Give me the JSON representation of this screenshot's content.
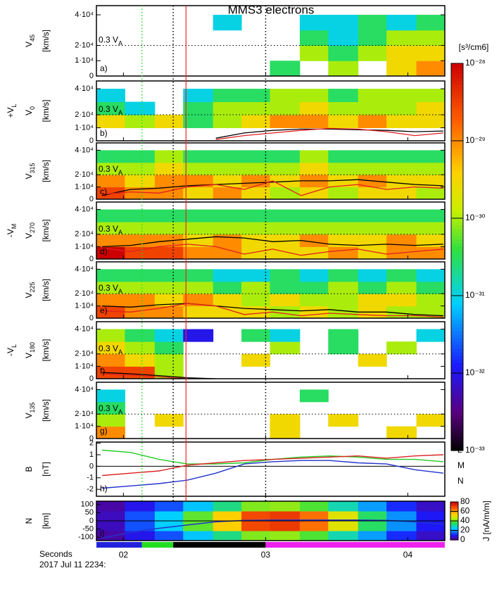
{
  "chart_data": {
    "type": "spectrogram",
    "title": "MMS3   electrons",
    "time_axis": {
      "xlim": [
        1.81,
        4.26
      ],
      "xticks": [
        {
          "value": 2,
          "label": "02"
        },
        {
          "value": 3,
          "label": "03"
        },
        {
          "value": 4,
          "label": "04"
        }
      ],
      "label_1": "Seconds",
      "label_2": "2017 Jul 11 2234:"
    },
    "markers": [
      {
        "x": 2.13,
        "color": "#22dd22",
        "style": "dotted"
      },
      {
        "x": 2.35,
        "color": "#000000",
        "style": "dotted"
      },
      {
        "x": 2.44,
        "color": "#ee2222",
        "style": "solid"
      },
      {
        "x": 3.0,
        "color": "#000000",
        "style": "dotted"
      }
    ],
    "interval_bar": [
      {
        "start": 1.81,
        "end": 2.13,
        "color": "#2222dd"
      },
      {
        "start": 2.13,
        "end": 2.35,
        "color": "#22dd22"
      },
      {
        "start": 2.35,
        "end": 3.0,
        "color": "#000000"
      },
      {
        "start": 3.0,
        "end": 4.26,
        "color": "#ee22ee"
      }
    ],
    "psd_colorbar": {
      "label": "[s³/cm6]",
      "log": true,
      "lim": [
        1e-33,
        1e-28
      ],
      "ticks": [
        {
          "value": 1e-28,
          "label": "10⁻²⁸"
        },
        {
          "value": 1e-29,
          "label": "10⁻²⁹"
        },
        {
          "value": 1e-30,
          "label": "10⁻³⁰"
        },
        {
          "value": 1e-31,
          "label": "10⁻³¹"
        },
        {
          "value": 1e-32,
          "label": "10⁻³²"
        },
        {
          "value": 1e-33,
          "label": "10⁻³³"
        }
      ]
    },
    "speed_axis": {
      "ylim": [
        0,
        46000
      ],
      "yticks": [
        0,
        {
          "value": 10000,
          "label": "1·10⁴"
        },
        {
          "value": 20000,
          "label": "2·10⁴"
        },
        {
          "value": 40000,
          "label": "4·10⁴"
        }
      ],
      "speed_bins": [
        0,
        10000,
        20000,
        30000,
        40000
      ],
      "va_level": 20000,
      "va_label": {
        "text": "0.3 V",
        "sub": "A"
      },
      "unit": "[km/s]"
    },
    "time_bins": [
      1.81,
      2.01,
      2.22,
      2.42,
      2.63,
      2.83,
      3.03,
      3.24,
      3.44,
      3.65,
      3.85,
      4.06,
      4.26
    ],
    "line_time": [
      1.85,
      2.05,
      2.25,
      2.45,
      2.65,
      2.85,
      3.05,
      3.25,
      3.45,
      3.65,
      3.85,
      4.05,
      4.25
    ],
    "panels": [
      {
        "type": "heatmap",
        "ylabel": {
          "text": "V",
          "sub": "45"
        },
        "letter": "a)",
        "psd": [
          [
            null,
            null,
            null,
            null,
            null,
            null,
            3e-31,
            null,
            1e-30,
            null,
            3e-30,
            1e-29
          ],
          [
            null,
            null,
            null,
            null,
            null,
            null,
            null,
            1e-30,
            3e-31,
            1e-30,
            3e-30,
            3e-30
          ],
          [
            null,
            null,
            null,
            null,
            null,
            null,
            null,
            3e-31,
            1e-31,
            3e-31,
            1e-30,
            1e-30
          ],
          [
            null,
            null,
            null,
            null,
            1e-31,
            null,
            null,
            1e-31,
            1e-31,
            3e-31,
            1e-31,
            3e-31
          ]
        ],
        "lines": []
      },
      {
        "type": "heatmap",
        "ylabel": {
          "text": "V",
          "sub": "0"
        },
        "letter": "b)",
        "side_label": {
          "text": "+V",
          "sub": "L"
        },
        "psd": [
          [
            null,
            null,
            null,
            null,
            null,
            null,
            null,
            null,
            null,
            null,
            null,
            null
          ],
          [
            3e-30,
            1e-30,
            3e-30,
            3e-31,
            1e-30,
            3e-30,
            1e-29,
            1e-29,
            3e-30,
            1e-29,
            3e-30,
            3e-30
          ],
          [
            3e-31,
            1e-31,
            null,
            3e-31,
            1e-30,
            1e-30,
            1e-30,
            3e-30,
            1e-30,
            1e-30,
            1e-30,
            3e-30
          ],
          [
            1e-31,
            null,
            null,
            1e-31,
            3e-31,
            3e-31,
            1e-30,
            1e-30,
            3e-31,
            1e-30,
            1e-30,
            1e-30
          ]
        ],
        "lines": [
          {
            "color": "#000000",
            "values": [
              null,
              null,
              null,
              null,
              2000,
              6000,
              8000,
              9000,
              9000,
              8500,
              8000,
              7000,
              7500
            ]
          },
          {
            "color": "#e02020",
            "values": [
              null,
              null,
              null,
              null,
              1000,
              4000,
              6000,
              8000,
              9500,
              9000,
              7000,
              4000,
              6000
            ]
          }
        ]
      },
      {
        "type": "heatmap",
        "ylabel": {
          "text": "V",
          "sub": "315"
        },
        "letter": "c)",
        "psd": [
          [
            3e-29,
            1e-29,
            1e-29,
            3e-30,
            1e-29,
            3e-30,
            1e-30,
            3e-30,
            1e-30,
            3e-30,
            3e-30,
            1e-30
          ],
          [
            1e-29,
            3e-30,
            1e-29,
            1e-29,
            3e-30,
            1e-29,
            3e-30,
            1e-29,
            3e-30,
            1e-29,
            3e-30,
            3e-30
          ],
          [
            1e-30,
            1e-30,
            3e-30,
            1e-30,
            1e-30,
            1e-30,
            1e-30,
            3e-30,
            1e-30,
            1e-30,
            1e-30,
            1e-30
          ],
          [
            3e-31,
            3e-31,
            1e-30,
            3e-31,
            3e-31,
            3e-31,
            3e-31,
            1e-30,
            3e-31,
            3e-31,
            3e-31,
            3e-31
          ]
        ],
        "lines": [
          {
            "color": "#000000",
            "values": [
              3000,
              8000,
              9000,
              11000,
              12000,
              13000,
              14000,
              15000,
              15000,
              16000,
              14000,
              12000,
              11000
            ]
          },
          {
            "color": "#e02020",
            "values": [
              4000,
              6000,
              5000,
              10000,
              12000,
              8000,
              15000,
              3000,
              10000,
              12000,
              8000,
              10000,
              9000
            ]
          }
        ]
      },
      {
        "type": "heatmap",
        "ylabel": {
          "text": "V",
          "sub": "270"
        },
        "letter": "d)",
        "side_label": {
          "text": "-V",
          "sub": "M"
        },
        "psd": [
          [
            1e-28,
            3e-29,
            3e-29,
            1e-29,
            1e-29,
            3e-30,
            3e-30,
            3e-30,
            1e-29,
            3e-30,
            1e-29,
            1e-29
          ],
          [
            1e-29,
            1e-29,
            1e-29,
            3e-30,
            1e-29,
            3e-30,
            3e-30,
            1e-29,
            3e-30,
            3e-30,
            1e-29,
            3e-30
          ],
          [
            1e-30,
            1e-30,
            1e-30,
            1e-30,
            1e-30,
            1e-30,
            1e-30,
            1e-30,
            1e-30,
            1e-30,
            1e-30,
            1e-30
          ],
          [
            3e-31,
            3e-31,
            3e-31,
            3e-31,
            3e-31,
            3e-31,
            3e-31,
            3e-31,
            3e-31,
            3e-31,
            3e-31,
            3e-31
          ]
        ],
        "lines": [
          {
            "color": "#000000",
            "values": [
              10000,
              11000,
              14000,
              16000,
              18000,
              17000,
              14000,
              15000,
              12000,
              11000,
              12000,
              11000,
              12000
            ]
          },
          {
            "color": "#e02020",
            "values": [
              9000,
              6000,
              10000,
              12000,
              10000,
              4000,
              8000,
              3000,
              6000,
              8000,
              4000,
              6000,
              8000
            ]
          }
        ]
      },
      {
        "type": "heatmap",
        "ylabel": {
          "text": "V",
          "sub": "225"
        },
        "letter": "e)",
        "psd": [
          [
            3e-29,
            1e-29,
            1e-29,
            3e-30,
            3e-30,
            3e-30,
            1e-30,
            3e-30,
            1e-30,
            3e-30,
            1e-30,
            1e-30
          ],
          [
            1e-29,
            1e-29,
            3e-30,
            1e-29,
            3e-30,
            1e-30,
            3e-30,
            1e-30,
            1e-30,
            3e-30,
            3e-30,
            1e-30
          ],
          [
            1e-30,
            1e-30,
            1e-30,
            1e-30,
            3e-31,
            1e-30,
            3e-31,
            3e-31,
            1e-30,
            3e-31,
            1e-30,
            3e-31
          ],
          [
            3e-31,
            3e-31,
            3e-31,
            3e-31,
            1e-31,
            1e-31,
            3e-31,
            1e-31,
            3e-31,
            1e-31,
            3e-31,
            1e-31
          ]
        ],
        "lines": [
          {
            "color": "#000000",
            "values": [
              10000,
              9000,
              11000,
              12000,
              10000,
              8000,
              7000,
              6000,
              7000,
              5000,
              5000,
              3000,
              2000
            ]
          },
          {
            "color": "#e02020",
            "values": [
              6000,
              5000,
              8000,
              12000,
              10000,
              3000,
              5000,
              2000,
              4000,
              3000,
              2000,
              2000,
              1000
            ]
          }
        ]
      },
      {
        "type": "heatmap",
        "ylabel": {
          "text": "V",
          "sub": "180"
        },
        "letter": "f)",
        "side_label": {
          "text": "-V",
          "sub": "L"
        },
        "psd": [
          [
            3e-29,
            3e-29,
            1e-30,
            null,
            null,
            null,
            null,
            null,
            null,
            null,
            null,
            null
          ],
          [
            1e-29,
            3e-30,
            1e-30,
            null,
            null,
            3e-30,
            null,
            null,
            null,
            3e-30,
            null,
            null
          ],
          [
            3e-30,
            1e-30,
            3e-31,
            null,
            null,
            null,
            1e-30,
            null,
            3e-31,
            null,
            1e-30,
            null
          ],
          [
            1e-30,
            3e-31,
            1e-31,
            1e-32,
            null,
            3e-31,
            1e-31,
            null,
            3e-31,
            null,
            null,
            1e-31
          ]
        ],
        "lines": [
          {
            "color": "#000000",
            "values": [
              5000,
              4000,
              2500,
              800,
              0,
              null,
              null,
              null,
              null,
              null,
              null,
              null,
              null
            ]
          },
          {
            "color": "#e02020",
            "values": [
              4000,
              3000,
              1500,
              0,
              null,
              null,
              null,
              null,
              null,
              null,
              null,
              null,
              null
            ]
          }
        ]
      },
      {
        "type": "heatmap",
        "ylabel": {
          "text": "V",
          "sub": "135"
        },
        "letter": "g)",
        "psd": [
          [
            1e-29,
            null,
            null,
            null,
            null,
            null,
            3e-30,
            null,
            null,
            null,
            3e-30,
            null
          ],
          [
            1e-30,
            null,
            3e-30,
            null,
            null,
            null,
            3e-30,
            null,
            3e-30,
            null,
            null,
            3e-30
          ],
          [
            3e-31,
            null,
            null,
            null,
            null,
            null,
            null,
            null,
            null,
            null,
            null,
            null
          ],
          [
            1e-31,
            null,
            null,
            null,
            null,
            null,
            null,
            3e-31,
            null,
            null,
            null,
            null
          ]
        ],
        "lines": []
      },
      {
        "type": "line",
        "ylabel": "B",
        "unit": "[nT]",
        "letter": "h)",
        "ylim": [
          -2.6,
          2.1
        ],
        "yticks": [
          -2,
          -1,
          0,
          1,
          2
        ],
        "series": [
          {
            "name": "L",
            "color": "#2233cc",
            "values": [
              -1.9,
              -1.7,
              -1.5,
              -1.2,
              -0.6,
              0.2,
              0.4,
              0.5,
              0.5,
              0.3,
              0.2,
              -0.3,
              -0.6
            ]
          },
          {
            "name": "M",
            "color": "#22cc22",
            "values": [
              1.4,
              1.2,
              0.6,
              0.2,
              0.2,
              0.3,
              0.6,
              0.8,
              0.9,
              0.8,
              0.6,
              0.6,
              0.4
            ]
          },
          {
            "name": "N",
            "color": "#dd2222",
            "values": [
              -0.8,
              -0.6,
              -0.4,
              0.1,
              0.3,
              0.5,
              0.6,
              0.7,
              0.8,
              0.9,
              0.7,
              0.9,
              1.0
            ]
          }
        ]
      },
      {
        "type": "current",
        "ylabel": "N",
        "unit": "[km]",
        "letter": "i)",
        "ylim": [
          -120,
          120
        ],
        "yticks": [
          -100,
          -50,
          0,
          50,
          100
        ],
        "y_bins": [
          -120,
          -60,
          0,
          60,
          120
        ],
        "j": [
          [
            3,
            9,
            15,
            24,
            33,
            42,
            43,
            39,
            30,
            21,
            12,
            6
          ],
          [
            5,
            15,
            25,
            40,
            55,
            70,
            72,
            65,
            50,
            35,
            20,
            10
          ],
          [
            5,
            15,
            25,
            40,
            55,
            70,
            72,
            65,
            50,
            35,
            20,
            10
          ],
          [
            3,
            9,
            15,
            24,
            33,
            42,
            43,
            39,
            30,
            21,
            12,
            6
          ]
        ],
        "j_colorbar": {
          "label": "J [nA/m/m]",
          "lim": [
            0,
            80
          ],
          "ticks": [
            0,
            20,
            40,
            60,
            80
          ]
        },
        "line": {
          "color": "#2233cc",
          "values": [
            -105,
            -70,
            -45,
            -25,
            -5,
            3,
            5,
            5,
            5,
            5,
            3,
            -5,
            -20
          ]
        }
      }
    ]
  }
}
